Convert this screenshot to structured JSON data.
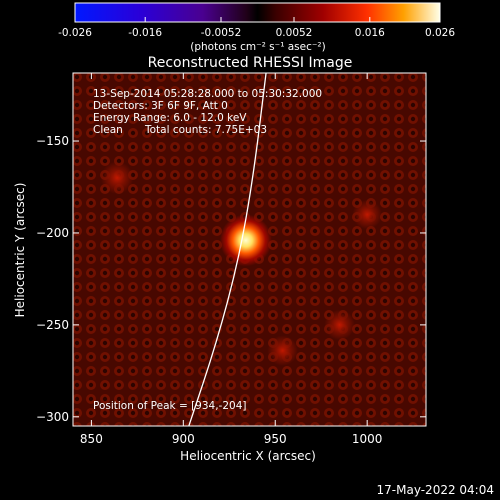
{
  "colorbar": {
    "tick_labels": [
      "-0.026",
      "-0.016",
      "-0.0052",
      "0.0052",
      "0.016",
      "0.026"
    ],
    "tick_values": [
      -0.026,
      -0.016,
      -0.0052,
      0.0052,
      0.016,
      0.026
    ],
    "range": [
      -0.026,
      0.026
    ],
    "units_label": "(photons cm⁻² s⁻¹ asec⁻²)"
  },
  "title": "Reconstructed RHESSI Image",
  "info": {
    "line1": "13-Sep-2014 05:28:28.000 to 05:30:32.000",
    "line2": "Detectors: 3F 6F 9F, Att 0",
    "line3": "Energy Range: 6.0 - 12.0 keV",
    "line4_left": "Clean",
    "line4_right": "Total counts: 7.75E+03",
    "peak": "Position of Peak = [934,-204]"
  },
  "axes": {
    "xlabel": "Heliocentric X (arcsec)",
    "ylabel": "Heliocentric Y (arcsec)",
    "xlim": [
      840,
      1032
    ],
    "ylim": [
      -305,
      -113
    ],
    "x_ticks": [
      850,
      900,
      950,
      1000
    ],
    "y_ticks": [
      -150,
      -200,
      -250,
      -300
    ]
  },
  "image_data": {
    "peak_position": [
      934,
      -204
    ],
    "sources": [
      {
        "x": 934,
        "y": -204,
        "amplitude": 0.026
      },
      {
        "x": 864,
        "y": -170,
        "amplitude": 0.008
      },
      {
        "x": 954,
        "y": -264,
        "amplitude": 0.006
      },
      {
        "x": 985,
        "y": -250,
        "amplitude": 0.006
      },
      {
        "x": 1000,
        "y": -190,
        "amplitude": 0.005
      }
    ],
    "limb_points": [
      [
        903,
        -305
      ],
      [
        918,
        -260
      ],
      [
        930,
        -215
      ],
      [
        938,
        -170
      ],
      [
        945,
        -113
      ]
    ]
  },
  "footer": {
    "date": "17-May-2022 04:04"
  },
  "colors": {
    "background": "#000000",
    "text": "#ffffff"
  }
}
